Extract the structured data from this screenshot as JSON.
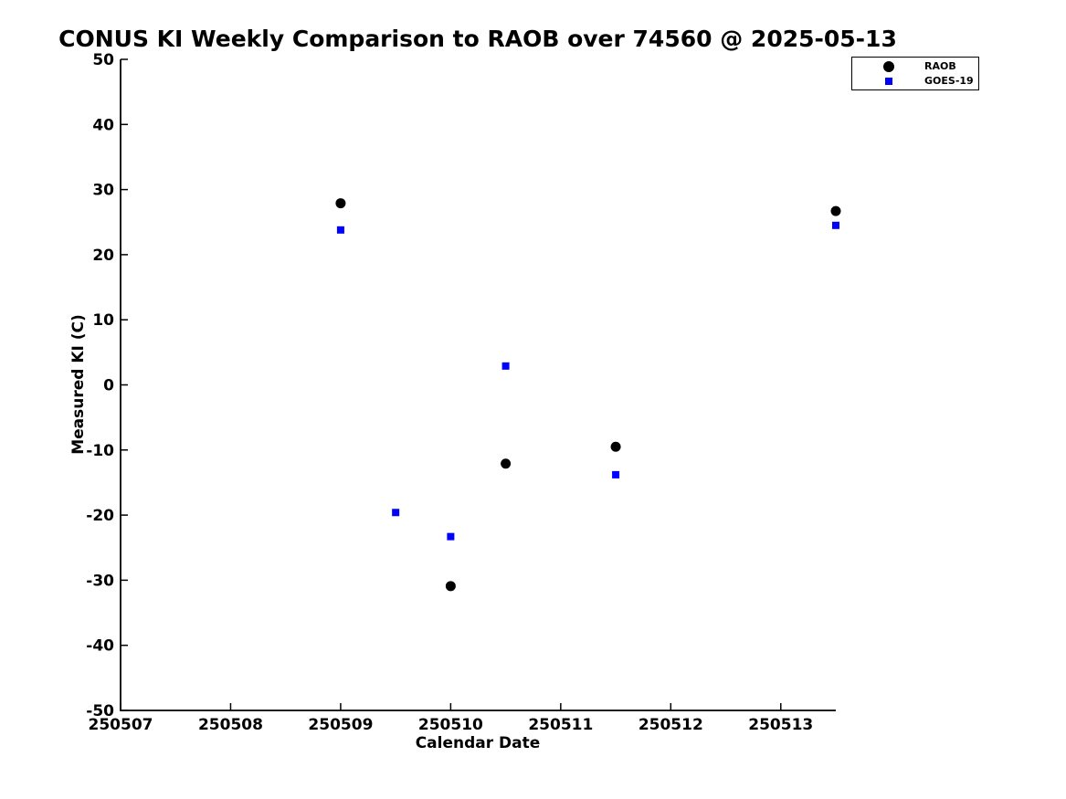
{
  "chart_data": {
    "type": "scatter",
    "title": "CONUS KI Weekly Comparison to RAOB over 74560 @ 2025-05-13",
    "xlabel": "Calendar Date",
    "ylabel": "Measured KI (C)",
    "xlim": [
      250507,
      250513.5
    ],
    "ylim": [
      -50,
      50
    ],
    "xticks": [
      250507,
      250508,
      250509,
      250510,
      250511,
      250512,
      250513
    ],
    "yticks": [
      -50,
      -40,
      -30,
      -20,
      -10,
      0,
      10,
      20,
      30,
      40,
      50
    ],
    "grid": false,
    "legend_position": "top-right",
    "series": [
      {
        "name": "RAOB",
        "marker": "circle",
        "color": "#000000",
        "points": [
          [
            250509.0,
            27.9
          ],
          [
            250510.0,
            -30.9
          ],
          [
            250510.5,
            -12.1
          ],
          [
            250511.5,
            -9.5
          ],
          [
            250513.5,
            26.7
          ]
        ]
      },
      {
        "name": "GOES-19",
        "marker": "square",
        "color": "#0000ff",
        "points": [
          [
            250509.0,
            23.8
          ],
          [
            250509.5,
            -19.6
          ],
          [
            250510.0,
            -23.3
          ],
          [
            250510.5,
            2.9
          ],
          [
            250511.5,
            -13.8
          ],
          [
            250513.5,
            24.5
          ]
        ]
      }
    ]
  },
  "colors": {
    "axis": "#000000",
    "background": "#ffffff"
  }
}
